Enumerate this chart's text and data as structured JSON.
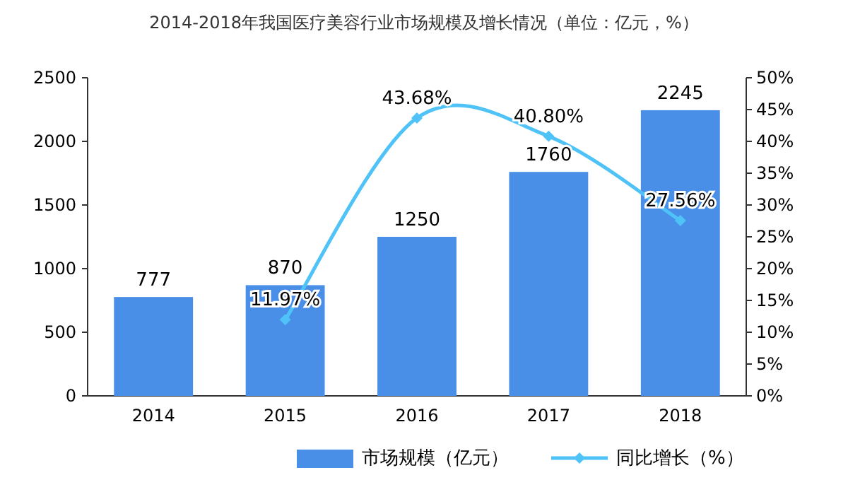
{
  "chart_data": {
    "type": "bar",
    "title": "2014-2018年我国医疗美容行业市场规模及增长情况（单位：亿元，%）",
    "categories": [
      "2014",
      "2015",
      "2016",
      "2017",
      "2018"
    ],
    "series": [
      {
        "name": "市场规模（亿元）",
        "color": "#4a8fe7",
        "values": [
          777,
          870,
          1250,
          1760,
          2245
        ],
        "value_labels": [
          "777",
          "870",
          "1250",
          "1760",
          "2245"
        ]
      },
      {
        "name": "同比增长（%）",
        "type": "line",
        "axis": "y2",
        "color": "#4fc3f7",
        "values": [
          null,
          11.97,
          43.68,
          40.8,
          27.56
        ],
        "value_labels": [
          null,
          "11.97%",
          "43.68%",
          "40.80%",
          "27.56%"
        ]
      }
    ],
    "ylim": [
      0,
      2500
    ],
    "yticks": [
      0,
      500,
      1000,
      1500,
      2000,
      2500
    ],
    "y2lim": [
      0,
      50
    ],
    "y2ticks": [
      {
        "value": 0,
        "label": "0%"
      },
      {
        "value": 5,
        "label": "5%"
      },
      {
        "value": 10,
        "label": "10%"
      },
      {
        "value": 15,
        "label": "15%"
      },
      {
        "value": 20,
        "label": "20%"
      },
      {
        "value": 25,
        "label": "25%"
      },
      {
        "value": 30,
        "label": "30%"
      },
      {
        "value": 35,
        "label": "35%"
      },
      {
        "value": 40,
        "label": "40%"
      },
      {
        "value": 45,
        "label": "45%"
      },
      {
        "value": 50,
        "label": "50%"
      }
    ],
    "marker": "diamond",
    "legend": "bottom",
    "grid": false
  }
}
